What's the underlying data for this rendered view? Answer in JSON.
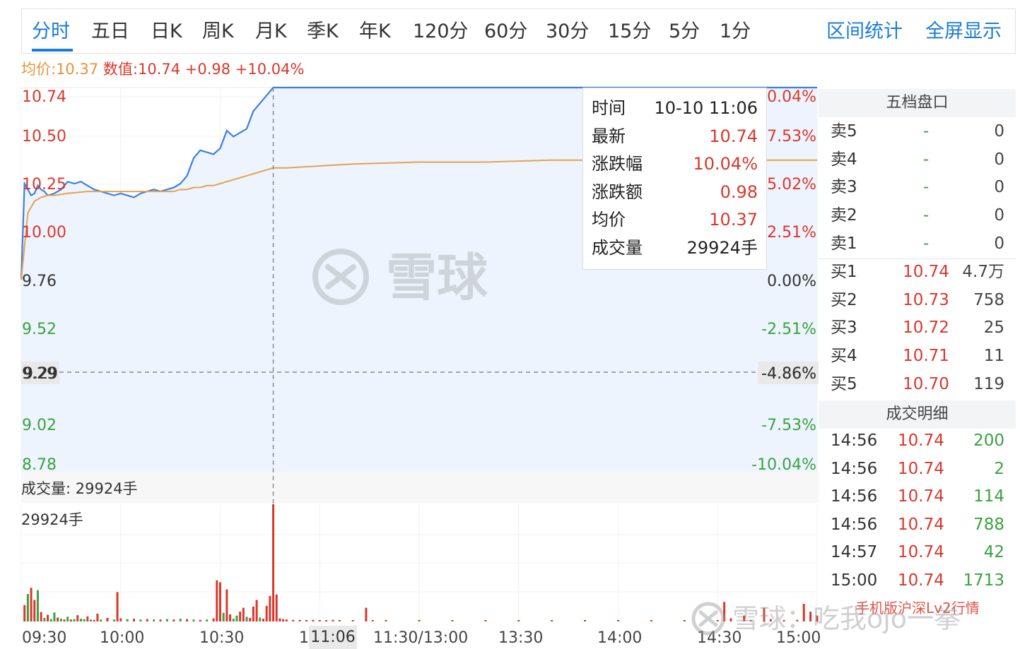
{
  "tabs": [
    "分时",
    "五日",
    "日K",
    "周K",
    "月K",
    "季K",
    "年K",
    "120分",
    "60分",
    "30分",
    "15分",
    "5分",
    "1分"
  ],
  "tab_actions": [
    "区间统计",
    "全屏显示"
  ],
  "info": {
    "avg_label": "均价:10.37",
    "value_label": "数值:10.74 +0.98 +10.04%"
  },
  "chart_data": {
    "type": "line",
    "price_axis": [
      "10.74",
      "10.50",
      "10.25",
      "10.00",
      "9.76",
      "9.52",
      "9.29",
      "9.02",
      "8.78"
    ],
    "pct_axis": [
      "10.04%",
      "7.53%",
      "5.02%",
      "2.51%",
      "0.00%",
      "-2.51%",
      "-4.86%",
      "-7.53%",
      "-10.04%"
    ],
    "prev_close": 9.76,
    "ylim": [
      8.78,
      10.74
    ],
    "time_axis": [
      "09:30",
      "10:00",
      "10:30",
      "1",
      "11:30/13:00",
      "13:30",
      "14:00",
      "14:30",
      "15:00"
    ],
    "cursor_time": "11:06",
    "cursor_price": "9.29",
    "cursor_pct": "-4.86%",
    "series": [
      {
        "name": "最新",
        "color": "#3b7ee6",
        "x": [
          0,
          1,
          2,
          3,
          4,
          5,
          6,
          7,
          8,
          10,
          12,
          14,
          16,
          18,
          20,
          22,
          24,
          26,
          28,
          30,
          32,
          34,
          36,
          38,
          40,
          42,
          44,
          46,
          48,
          50,
          52,
          54,
          56,
          58,
          60,
          62,
          64,
          66,
          68,
          70,
          72,
          74,
          76,
          78,
          80,
          82,
          84,
          86,
          88,
          90,
          92,
          94,
          96
        ],
        "values": [
          9.76,
          10.25,
          10.22,
          10.19,
          10.2,
          10.24,
          10.22,
          10.21,
          10.19,
          10.2,
          10.22,
          10.26,
          10.25,
          10.26,
          10.24,
          10.22,
          10.21,
          10.2,
          10.19,
          10.2,
          10.19,
          10.18,
          10.2,
          10.21,
          10.22,
          10.21,
          10.22,
          10.23,
          10.25,
          10.29,
          10.38,
          10.42,
          10.41,
          10.4,
          10.43,
          10.52,
          10.49,
          10.51,
          10.53,
          10.62,
          10.66,
          10.7,
          10.74,
          10.74,
          10.74,
          10.74,
          10.74,
          10.74,
          10.74,
          10.74,
          10.74,
          10.74,
          10.74
        ]
      },
      {
        "name": "均价",
        "color": "#e8a04d",
        "x": [
          0,
          2,
          4,
          6,
          8,
          10,
          14,
          20,
          26,
          30,
          36,
          40,
          42,
          44,
          46,
          48,
          50,
          52,
          54,
          56,
          58,
          60,
          62,
          64,
          66,
          68,
          70,
          72,
          74,
          76,
          80,
          90,
          100,
          120,
          140,
          160,
          180,
          200,
          220,
          240
        ],
        "values": [
          9.76,
          10.1,
          10.16,
          10.18,
          10.19,
          10.19,
          10.2,
          10.21,
          10.21,
          10.21,
          10.21,
          10.21,
          10.21,
          10.21,
          10.21,
          10.22,
          10.22,
          10.23,
          10.23,
          10.24,
          10.24,
          10.25,
          10.26,
          10.27,
          10.28,
          10.29,
          10.3,
          10.31,
          10.32,
          10.33,
          10.33,
          10.34,
          10.35,
          10.36,
          10.36,
          10.37,
          10.37,
          10.37,
          10.37,
          10.37
        ]
      }
    ],
    "volume": {
      "label": "成交量: 29924手",
      "max_label": "29924手",
      "max": 29924,
      "bars": [
        {
          "x": 1,
          "v": 4200,
          "c": "r"
        },
        {
          "x": 2,
          "v": 7000,
          "c": "g"
        },
        {
          "x": 3,
          "v": 8600,
          "c": "r"
        },
        {
          "x": 4,
          "v": 5500,
          "c": "r"
        },
        {
          "x": 5,
          "v": 8000,
          "c": "g"
        },
        {
          "x": 6,
          "v": 2400,
          "c": "r"
        },
        {
          "x": 7,
          "v": 900,
          "c": "g"
        },
        {
          "x": 8,
          "v": 1700,
          "c": "r"
        },
        {
          "x": 9,
          "v": 600,
          "c": "g"
        },
        {
          "x": 10,
          "v": 2300,
          "c": "g"
        },
        {
          "x": 11,
          "v": 1000,
          "c": "r"
        },
        {
          "x": 12,
          "v": 700,
          "c": "g"
        },
        {
          "x": 13,
          "v": 500,
          "c": "r"
        },
        {
          "x": 14,
          "v": 1200,
          "c": "g"
        },
        {
          "x": 15,
          "v": 500,
          "c": "r"
        },
        {
          "x": 16,
          "v": 600,
          "c": "g"
        },
        {
          "x": 17,
          "v": 1600,
          "c": "r"
        },
        {
          "x": 18,
          "v": 700,
          "c": "g"
        },
        {
          "x": 19,
          "v": 600,
          "c": "g"
        },
        {
          "x": 20,
          "v": 1300,
          "c": "r"
        },
        {
          "x": 21,
          "v": 500,
          "c": "g"
        },
        {
          "x": 22,
          "v": 400,
          "c": "r"
        },
        {
          "x": 23,
          "v": 2000,
          "c": "r"
        },
        {
          "x": 24,
          "v": 500,
          "c": "g"
        },
        {
          "x": 26,
          "v": 900,
          "c": "r"
        },
        {
          "x": 28,
          "v": 500,
          "c": "g"
        },
        {
          "x": 29,
          "v": 7500,
          "c": "r"
        },
        {
          "x": 30,
          "v": 800,
          "c": "r"
        },
        {
          "x": 32,
          "v": 600,
          "c": "g"
        },
        {
          "x": 34,
          "v": 700,
          "c": "r"
        },
        {
          "x": 36,
          "v": 500,
          "c": "g"
        },
        {
          "x": 38,
          "v": 600,
          "c": "r"
        },
        {
          "x": 40,
          "v": 500,
          "c": "g"
        },
        {
          "x": 42,
          "v": 500,
          "c": "r"
        },
        {
          "x": 44,
          "v": 600,
          "c": "g"
        },
        {
          "x": 46,
          "v": 500,
          "c": "r"
        },
        {
          "x": 48,
          "v": 700,
          "c": "g"
        },
        {
          "x": 50,
          "v": 600,
          "c": "r"
        },
        {
          "x": 52,
          "v": 500,
          "c": "g"
        },
        {
          "x": 54,
          "v": 400,
          "c": "r"
        },
        {
          "x": 56,
          "v": 500,
          "c": "g"
        },
        {
          "x": 58,
          "v": 800,
          "c": "r"
        },
        {
          "x": 59,
          "v": 10500,
          "c": "r"
        },
        {
          "x": 60,
          "v": 10000,
          "c": "r"
        },
        {
          "x": 61,
          "v": 2200,
          "c": "g"
        },
        {
          "x": 62,
          "v": 8200,
          "c": "r"
        },
        {
          "x": 63,
          "v": 1800,
          "c": "r"
        },
        {
          "x": 64,
          "v": 700,
          "c": "g"
        },
        {
          "x": 65,
          "v": 1500,
          "c": "g"
        },
        {
          "x": 66,
          "v": 2500,
          "c": "r"
        },
        {
          "x": 67,
          "v": 3500,
          "c": "r"
        },
        {
          "x": 68,
          "v": 1200,
          "c": "g"
        },
        {
          "x": 69,
          "v": 900,
          "c": "r"
        },
        {
          "x": 70,
          "v": 3800,
          "c": "r"
        },
        {
          "x": 71,
          "v": 5500,
          "c": "r"
        },
        {
          "x": 72,
          "v": 1000,
          "c": "g"
        },
        {
          "x": 73,
          "v": 700,
          "c": "r"
        },
        {
          "x": 74,
          "v": 4000,
          "c": "r"
        },
        {
          "x": 75,
          "v": 6500,
          "c": "r"
        },
        {
          "x": 76,
          "v": 29924,
          "c": "r"
        },
        {
          "x": 77,
          "v": 6900,
          "c": "r"
        },
        {
          "x": 78,
          "v": 800,
          "c": "r"
        },
        {
          "x": 79,
          "v": 600,
          "c": "r"
        },
        {
          "x": 80,
          "v": 500,
          "c": "r"
        },
        {
          "x": 82,
          "v": 400,
          "c": "r"
        },
        {
          "x": 84,
          "v": 400,
          "c": "r"
        },
        {
          "x": 86,
          "v": 300,
          "c": "r"
        },
        {
          "x": 88,
          "v": 400,
          "c": "r"
        },
        {
          "x": 90,
          "v": 300,
          "c": "r"
        },
        {
          "x": 92,
          "v": 300,
          "c": "r"
        },
        {
          "x": 94,
          "v": 400,
          "c": "r"
        },
        {
          "x": 96,
          "v": 300,
          "c": "r"
        },
        {
          "x": 100,
          "v": 300,
          "c": "r"
        },
        {
          "x": 104,
          "v": 3500,
          "c": "r"
        },
        {
          "x": 106,
          "v": 300,
          "c": "r"
        },
        {
          "x": 110,
          "v": 200,
          "c": "r"
        },
        {
          "x": 120,
          "v": 200,
          "c": "r"
        },
        {
          "x": 130,
          "v": 200,
          "c": "r"
        },
        {
          "x": 140,
          "v": 200,
          "c": "r"
        },
        {
          "x": 150,
          "v": 200,
          "c": "r"
        },
        {
          "x": 160,
          "v": 200,
          "c": "r"
        },
        {
          "x": 170,
          "v": 200,
          "c": "r"
        },
        {
          "x": 180,
          "v": 200,
          "c": "r"
        },
        {
          "x": 190,
          "v": 200,
          "c": "r"
        },
        {
          "x": 200,
          "v": 200,
          "c": "r"
        },
        {
          "x": 210,
          "v": 200,
          "c": "r"
        },
        {
          "x": 212,
          "v": 5000,
          "c": "r"
        },
        {
          "x": 214,
          "v": 800,
          "c": "r"
        },
        {
          "x": 218,
          "v": 1500,
          "c": "r"
        },
        {
          "x": 220,
          "v": 300,
          "c": "r"
        },
        {
          "x": 224,
          "v": 3500,
          "c": "r"
        },
        {
          "x": 226,
          "v": 600,
          "c": "r"
        },
        {
          "x": 230,
          "v": 300,
          "c": "r"
        },
        {
          "x": 234,
          "v": 400,
          "c": "r"
        },
        {
          "x": 236,
          "v": 4500,
          "c": "r"
        },
        {
          "x": 238,
          "v": 2500,
          "c": "r"
        },
        {
          "x": 240,
          "v": 1500,
          "c": "r"
        }
      ]
    }
  },
  "tooltip": {
    "rows": [
      {
        "label": "时间",
        "value": "10-10 11:06"
      },
      {
        "label": "最新",
        "value": "10.74"
      },
      {
        "label": "涨跌幅",
        "value": "10.04%"
      },
      {
        "label": "涨跌额",
        "value": "0.98"
      },
      {
        "label": "均价",
        "value": "10.37"
      },
      {
        "label": "成交量",
        "value": "29924手"
      }
    ]
  },
  "orderbook": {
    "title": "五档盘口",
    "asks": [
      {
        "label": "卖5",
        "price": "-",
        "volume": "0"
      },
      {
        "label": "卖4",
        "price": "-",
        "volume": "0"
      },
      {
        "label": "卖3",
        "price": "-",
        "volume": "0"
      },
      {
        "label": "卖2",
        "price": "-",
        "volume": "0"
      },
      {
        "label": "卖1",
        "price": "-",
        "volume": "0"
      }
    ],
    "bids": [
      {
        "label": "买1",
        "price": "10.74",
        "volume": "4.7万"
      },
      {
        "label": "买2",
        "price": "10.73",
        "volume": "758"
      },
      {
        "label": "买3",
        "price": "10.72",
        "volume": "25"
      },
      {
        "label": "买4",
        "price": "10.71",
        "volume": "11"
      },
      {
        "label": "买5",
        "price": "10.70",
        "volume": "119"
      }
    ]
  },
  "trades": {
    "title": "成交明细",
    "rows": [
      {
        "time": "14:56",
        "price": "10.74",
        "volume": "200"
      },
      {
        "time": "14:56",
        "price": "10.74",
        "volume": "2"
      },
      {
        "time": "14:56",
        "price": "10.74",
        "volume": "114"
      },
      {
        "time": "14:56",
        "price": "10.74",
        "volume": "788"
      },
      {
        "time": "14:57",
        "price": "10.74",
        "volume": "42"
      },
      {
        "time": "15:00",
        "price": "10.74",
        "volume": "1713"
      }
    ]
  },
  "watermark": {
    "center": "雪球",
    "bottom": "雪球：吃我ojo一拳",
    "lv2": "手机版沪深Lv2行情"
  },
  "colors": {
    "accent": "#1c7bd8",
    "up": "#d8382c",
    "down": "#3aa240",
    "avg": "#e8a04d",
    "price_line": "#3b7ee6"
  }
}
